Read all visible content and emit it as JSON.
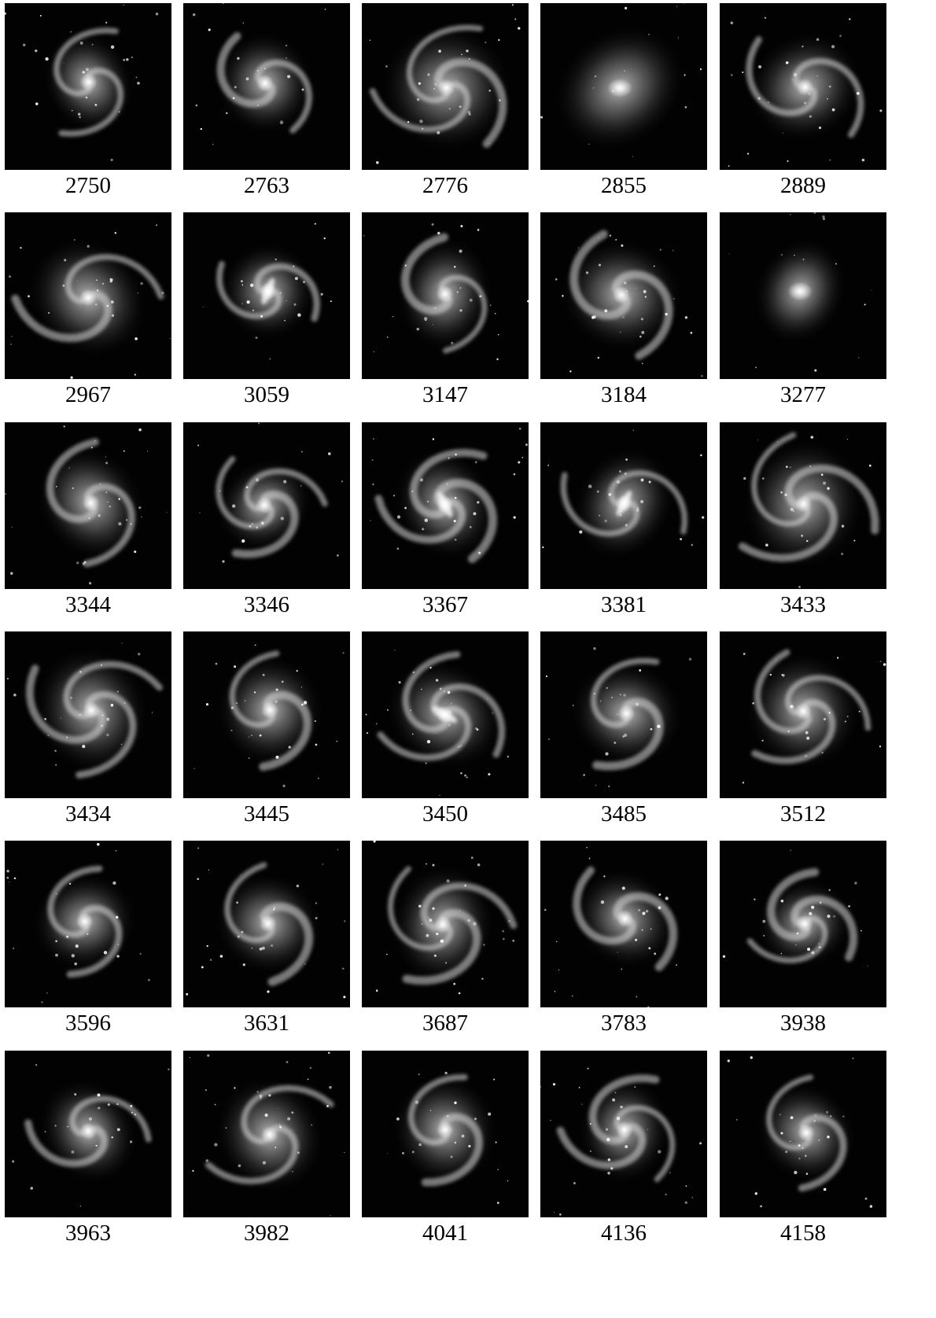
{
  "figure": {
    "galaxies": [
      {
        "id": "2750",
        "morphology": "spiral"
      },
      {
        "id": "2763",
        "morphology": "spiral"
      },
      {
        "id": "2776",
        "morphology": "spiral"
      },
      {
        "id": "2855",
        "morphology": "lenticular"
      },
      {
        "id": "2889",
        "morphology": "spiral"
      },
      {
        "id": "2967",
        "morphology": "spiral"
      },
      {
        "id": "3059",
        "morphology": "barred-spiral"
      },
      {
        "id": "3147",
        "morphology": "spiral"
      },
      {
        "id": "3184",
        "morphology": "spiral"
      },
      {
        "id": "3277",
        "morphology": "elliptical"
      },
      {
        "id": "3344",
        "morphology": "spiral"
      },
      {
        "id": "3346",
        "morphology": "spiral"
      },
      {
        "id": "3367",
        "morphology": "barred-spiral"
      },
      {
        "id": "3381",
        "morphology": "barred-spiral"
      },
      {
        "id": "3433",
        "morphology": "spiral"
      },
      {
        "id": "3434",
        "morphology": "spiral"
      },
      {
        "id": "3445",
        "morphology": "irregular-spiral"
      },
      {
        "id": "3450",
        "morphology": "barred-spiral"
      },
      {
        "id": "3485",
        "morphology": "spiral"
      },
      {
        "id": "3512",
        "morphology": "spiral"
      },
      {
        "id": "3596",
        "morphology": "spiral"
      },
      {
        "id": "3631",
        "morphology": "spiral"
      },
      {
        "id": "3687",
        "morphology": "spiral"
      },
      {
        "id": "3783",
        "morphology": "spiral"
      },
      {
        "id": "3938",
        "morphology": "spiral"
      },
      {
        "id": "3963",
        "morphology": "spiral"
      },
      {
        "id": "3982",
        "morphology": "spiral"
      },
      {
        "id": "4041",
        "morphology": "spiral"
      },
      {
        "id": "4136",
        "morphology": "spiral"
      },
      {
        "id": "4158",
        "morphology": "spiral"
      }
    ]
  }
}
